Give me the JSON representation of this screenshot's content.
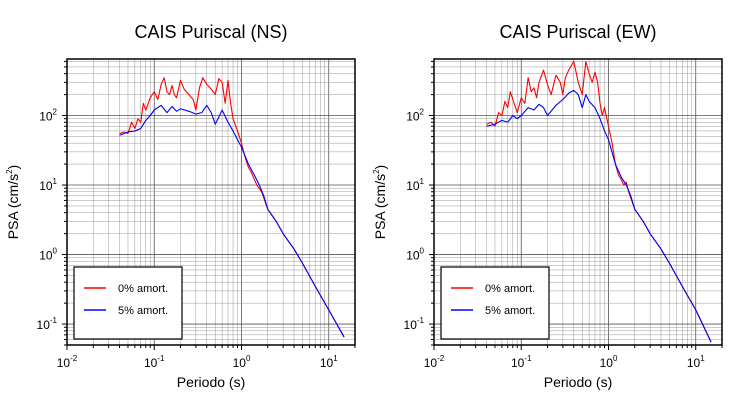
{
  "chart_data": [
    {
      "type": "line",
      "title": "CAIS Puriscal (NS)",
      "xlabel": "Periodo (s)",
      "ylabel_main": "PSA (cm/s",
      "ylabel_sup": "2",
      "ylabel_close": ")",
      "xscale": "log",
      "yscale": "log",
      "xlim": [
        0.01,
        20
      ],
      "ylim": [
        0.05,
        650
      ],
      "xticks": [
        0.01,
        0.1,
        1,
        10
      ],
      "yticks": [
        0.1,
        1,
        10,
        100
      ],
      "grid": true,
      "legend": "bottom-left",
      "series": [
        {
          "name": "0% amort.",
          "color": "#ff0000",
          "points": [
            [
              0.04,
              55
            ],
            [
              0.045,
              58
            ],
            [
              0.05,
              55
            ],
            [
              0.055,
              80
            ],
            [
              0.06,
              65
            ],
            [
              0.065,
              90
            ],
            [
              0.07,
              80
            ],
            [
              0.075,
              150
            ],
            [
              0.08,
              120
            ],
            [
              0.09,
              180
            ],
            [
              0.1,
              220
            ],
            [
              0.11,
              170
            ],
            [
              0.12,
              280
            ],
            [
              0.13,
              350
            ],
            [
              0.14,
              220
            ],
            [
              0.15,
              200
            ],
            [
              0.16,
              270
            ],
            [
              0.17,
              200
            ],
            [
              0.18,
              180
            ],
            [
              0.2,
              320
            ],
            [
              0.22,
              240
            ],
            [
              0.25,
              200
            ],
            [
              0.28,
              170
            ],
            [
              0.3,
              120
            ],
            [
              0.33,
              250
            ],
            [
              0.36,
              350
            ],
            [
              0.4,
              280
            ],
            [
              0.45,
              240
            ],
            [
              0.5,
              200
            ],
            [
              0.55,
              340
            ],
            [
              0.6,
              300
            ],
            [
              0.65,
              150
            ],
            [
              0.7,
              320
            ],
            [
              0.75,
              150
            ],
            [
              0.8,
              90
            ],
            [
              0.9,
              60
            ],
            [
              1.0,
              40
            ],
            [
              1.1,
              25
            ],
            [
              1.2,
              18
            ],
            [
              1.3,
              15
            ],
            [
              1.5,
              10
            ],
            [
              1.7,
              8
            ],
            [
              2.0,
              4.5
            ],
            [
              2.5,
              3.0
            ],
            [
              3.0,
              2.0
            ],
            [
              4.0,
              1.2
            ],
            [
              5.0,
              0.75
            ],
            [
              7.0,
              0.35
            ],
            [
              10.0,
              0.16
            ],
            [
              15.0,
              0.065
            ]
          ]
        },
        {
          "name": "5% amort.",
          "color": "#0000ff",
          "points": [
            [
              0.04,
              52
            ],
            [
              0.05,
              58
            ],
            [
              0.06,
              60
            ],
            [
              0.07,
              65
            ],
            [
              0.08,
              85
            ],
            [
              0.09,
              100
            ],
            [
              0.1,
              120
            ],
            [
              0.12,
              140
            ],
            [
              0.14,
              110
            ],
            [
              0.16,
              135
            ],
            [
              0.18,
              115
            ],
            [
              0.2,
              125
            ],
            [
              0.25,
              115
            ],
            [
              0.3,
              105
            ],
            [
              0.35,
              110
            ],
            [
              0.4,
              140
            ],
            [
              0.45,
              110
            ],
            [
              0.5,
              75
            ],
            [
              0.55,
              95
            ],
            [
              0.6,
              120
            ],
            [
              0.7,
              80
            ],
            [
              0.8,
              60
            ],
            [
              0.9,
              45
            ],
            [
              1.0,
              35
            ],
            [
              1.2,
              20
            ],
            [
              1.4,
              14
            ],
            [
              1.6,
              10
            ],
            [
              1.8,
              7
            ],
            [
              2.0,
              4.5
            ],
            [
              2.5,
              3.0
            ],
            [
              3.0,
              2.0
            ],
            [
              4.0,
              1.2
            ],
            [
              5.0,
              0.75
            ],
            [
              7.0,
              0.35
            ],
            [
              10.0,
              0.16
            ],
            [
              15.0,
              0.065
            ]
          ]
        }
      ]
    },
    {
      "type": "line",
      "title": "CAIS Puriscal (EW)",
      "xlabel": "Periodo (s)",
      "ylabel_main": "PSA (cm/s",
      "ylabel_sup": "2",
      "ylabel_close": ")",
      "xscale": "log",
      "yscale": "log",
      "xlim": [
        0.01,
        20
      ],
      "ylim": [
        0.05,
        650
      ],
      "xticks": [
        0.01,
        0.1,
        1,
        10
      ],
      "yticks": [
        0.1,
        1,
        10,
        100
      ],
      "grid": true,
      "legend": "bottom-left",
      "series": [
        {
          "name": "0% amort.",
          "color": "#ff0000",
          "points": [
            [
              0.04,
              75
            ],
            [
              0.045,
              80
            ],
            [
              0.05,
              70
            ],
            [
              0.055,
              110
            ],
            [
              0.06,
              100
            ],
            [
              0.065,
              160
            ],
            [
              0.07,
              130
            ],
            [
              0.075,
              220
            ],
            [
              0.08,
              170
            ],
            [
              0.09,
              110
            ],
            [
              0.1,
              180
            ],
            [
              0.11,
              150
            ],
            [
              0.12,
              350
            ],
            [
              0.13,
              220
            ],
            [
              0.14,
              250
            ],
            [
              0.15,
              180
            ],
            [
              0.16,
              300
            ],
            [
              0.18,
              450
            ],
            [
              0.2,
              280
            ],
            [
              0.22,
              200
            ],
            [
              0.25,
              380
            ],
            [
              0.28,
              300
            ],
            [
              0.3,
              200
            ],
            [
              0.32,
              350
            ],
            [
              0.35,
              450
            ],
            [
              0.4,
              600
            ],
            [
              0.45,
              300
            ],
            [
              0.5,
              200
            ],
            [
              0.55,
              600
            ],
            [
              0.6,
              400
            ],
            [
              0.65,
              300
            ],
            [
              0.7,
              420
            ],
            [
              0.75,
              300
            ],
            [
              0.8,
              150
            ],
            [
              0.85,
              100
            ],
            [
              0.9,
              130
            ],
            [
              1.0,
              70
            ],
            [
              1.1,
              40
            ],
            [
              1.2,
              20
            ],
            [
              1.3,
              14
            ],
            [
              1.4,
              12
            ],
            [
              1.5,
              10
            ],
            [
              1.6,
              11
            ],
            [
              1.7,
              8
            ],
            [
              2.0,
              4.5
            ],
            [
              2.5,
              3.0
            ],
            [
              3.0,
              2.0
            ],
            [
              4.0,
              1.2
            ],
            [
              5.0,
              0.75
            ],
            [
              7.0,
              0.35
            ],
            [
              10.0,
              0.16
            ],
            [
              15.0,
              0.055
            ]
          ]
        },
        {
          "name": "5% amort.",
          "color": "#0000ff",
          "points": [
            [
              0.04,
              70
            ],
            [
              0.05,
              75
            ],
            [
              0.06,
              85
            ],
            [
              0.07,
              80
            ],
            [
              0.08,
              100
            ],
            [
              0.09,
              90
            ],
            [
              0.1,
              100
            ],
            [
              0.12,
              130
            ],
            [
              0.14,
              120
            ],
            [
              0.16,
              145
            ],
            [
              0.18,
              130
            ],
            [
              0.2,
              100
            ],
            [
              0.25,
              140
            ],
            [
              0.3,
              170
            ],
            [
              0.35,
              210
            ],
            [
              0.4,
              230
            ],
            [
              0.45,
              200
            ],
            [
              0.5,
              130
            ],
            [
              0.55,
              200
            ],
            [
              0.6,
              160
            ],
            [
              0.7,
              130
            ],
            [
              0.8,
              90
            ],
            [
              0.9,
              60
            ],
            [
              1.0,
              45
            ],
            [
              1.2,
              20
            ],
            [
              1.4,
              13
            ],
            [
              1.6,
              10
            ],
            [
              1.8,
              7
            ],
            [
              2.0,
              4.5
            ],
            [
              2.5,
              3.0
            ],
            [
              3.0,
              2.0
            ],
            [
              4.0,
              1.2
            ],
            [
              5.0,
              0.75
            ],
            [
              7.0,
              0.35
            ],
            [
              10.0,
              0.16
            ],
            [
              15.0,
              0.055
            ]
          ]
        }
      ]
    }
  ]
}
